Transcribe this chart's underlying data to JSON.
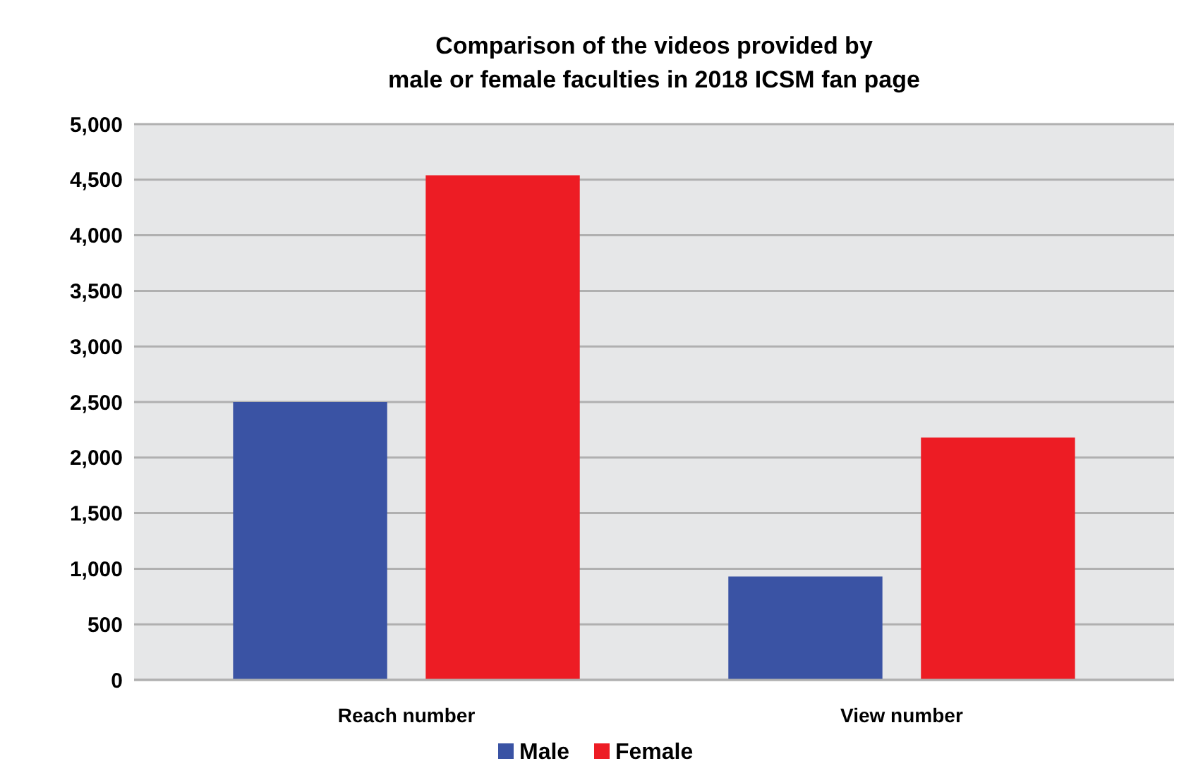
{
  "chart_data": {
    "type": "bar",
    "title": "Comparison of the videos provided by\nmale or female faculties in 2018 ICSM fan page",
    "categories": [
      "Reach number",
      "View number"
    ],
    "series": [
      {
        "name": "Male",
        "color": "#3a53a4",
        "values": [
          2500,
          930
        ]
      },
      {
        "name": "Female",
        "color": "#ed1c24",
        "values": [
          4540,
          2180
        ]
      }
    ],
    "ylim": [
      0,
      5000
    ],
    "yticks": [
      {
        "value": 0,
        "label": "0"
      },
      {
        "value": 500,
        "label": "500"
      },
      {
        "value": 1000,
        "label": "1,000"
      },
      {
        "value": 1500,
        "label": "1,500"
      },
      {
        "value": 2000,
        "label": "2,000"
      },
      {
        "value": 2500,
        "label": "2,500"
      },
      {
        "value": 3000,
        "label": "3,000"
      },
      {
        "value": 3500,
        "label": "3,500"
      },
      {
        "value": 4000,
        "label": "4,000"
      },
      {
        "value": 4500,
        "label": "4,500"
      },
      {
        "value": 5000,
        "label": "5,000"
      }
    ],
    "grid": "y",
    "legend": "bottom"
  }
}
